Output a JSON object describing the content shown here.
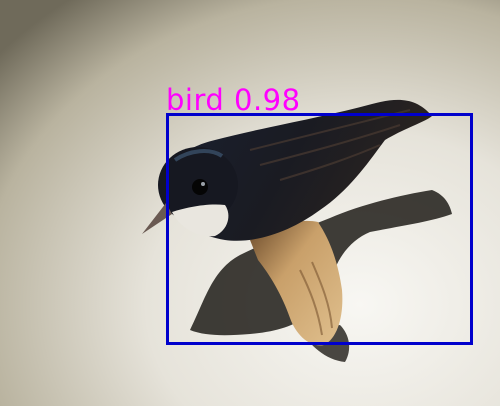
{
  "image": {
    "subject": "bird-perched-on-wood",
    "colors": {
      "background_light": "#f4f3ef",
      "background_dark": "#6f6a5a",
      "bird_dark": "#161821",
      "bird_throat": "#e9e6df",
      "perch": "#c9a06a",
      "shadow": "#1e1c17"
    }
  },
  "detection": {
    "label": "bird 0.98",
    "box_color": "#0000cc",
    "label_color": "#ff00ff"
  }
}
